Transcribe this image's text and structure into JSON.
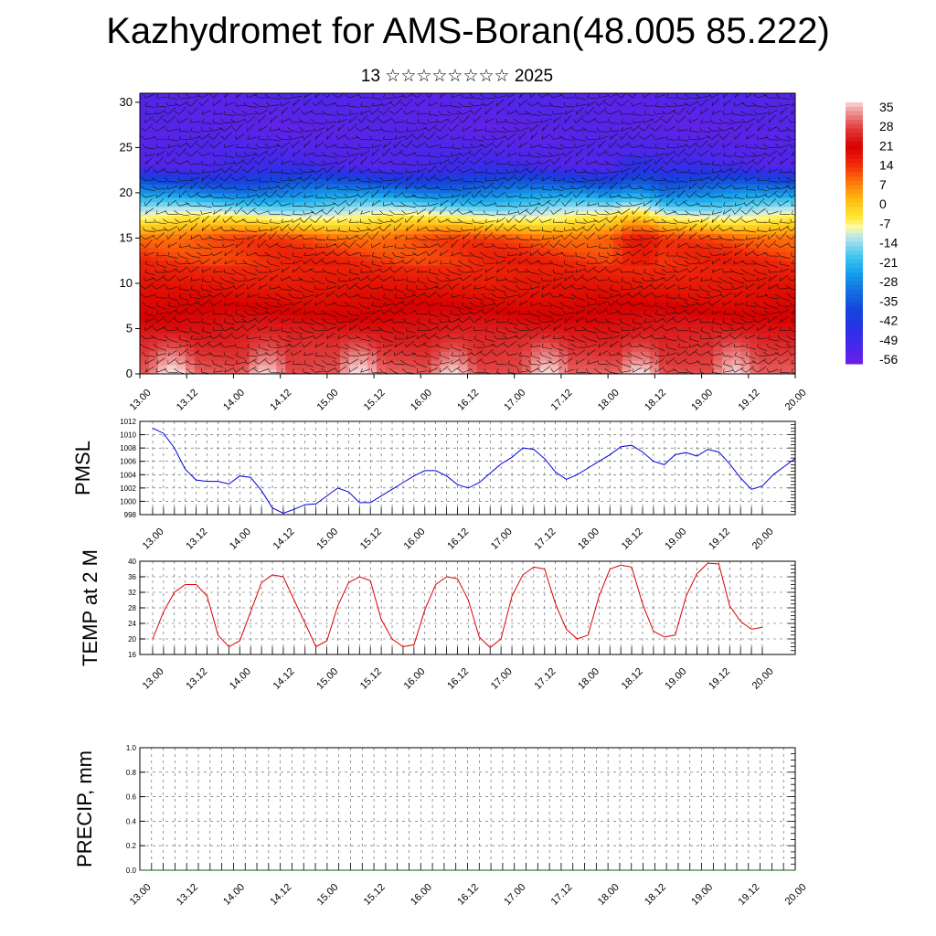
{
  "title": "Kazhydromet for AMS-Boran(48.005 85.222)",
  "subtitle": "13 ☆☆☆☆☆☆☆☆ 2025",
  "chart_data": [
    {
      "type": "heatmap",
      "name": "vertical-section",
      "ylim": [
        0,
        31
      ],
      "yticks": [
        "0",
        "5",
        "10",
        "15",
        "20",
        "25",
        "30"
      ],
      "x_ticks": [
        "13.00",
        "13.12",
        "14.00",
        "14.12",
        "15.00",
        "15.12",
        "16.00",
        "16.12",
        "17.00",
        "17.12",
        "18.00",
        "18.12",
        "19.00",
        "19.12",
        "20.00"
      ],
      "colorbar": {
        "labels": [
          "35",
          "28",
          "21",
          "14",
          "7",
          "0",
          "-7",
          "-14",
          "-21",
          "-28",
          "-35",
          "-42",
          "-49",
          "-56"
        ],
        "min": -63,
        "max": 38
      }
    },
    {
      "type": "line",
      "name": "pmsl",
      "ylabel": "PMSL",
      "ylim": [
        998,
        1012
      ],
      "yticks": [
        "998",
        "1000",
        "1002",
        "1004",
        "1006",
        "1008",
        "1010",
        "1012"
      ],
      "x_ticks": [
        "13.00",
        "13.12",
        "14.00",
        "14.12",
        "15.00",
        "15.12",
        "16.00",
        "16.12",
        "17.00",
        "17.12",
        "18.00",
        "18.12",
        "19.00",
        "19.12",
        "20.00"
      ],
      "series": [
        {
          "color": "#0000dd",
          "values": [
            1011.0,
            1010.2,
            1008.0,
            1004.8,
            1003.2,
            1003.0,
            1003.0,
            1002.6,
            1003.8,
            1003.6,
            1001.6,
            999.0,
            998.2,
            998.8,
            999.5,
            999.6,
            1000.8,
            1002.0,
            1001.4,
            999.8,
            999.8,
            1000.8,
            1001.8,
            1002.8,
            1003.8,
            1004.6,
            1004.6,
            1003.8,
            1002.5,
            1002.0,
            1002.8,
            1004.2,
            1005.6,
            1006.6,
            1008.0,
            1007.8,
            1006.4,
            1004.4,
            1003.3,
            1004.0,
            1005.0,
            1006.0,
            1007.0,
            1008.2,
            1008.4,
            1007.4,
            1006.0,
            1005.5,
            1007.0,
            1007.3,
            1006.8,
            1007.8,
            1007.4,
            1005.6,
            1003.5,
            1001.8,
            1002.3,
            1004.0,
            1005.2,
            1006.4
          ]
        }
      ]
    },
    {
      "type": "line",
      "name": "temp-2m",
      "ylabel": "TEMP at 2 M",
      "ylim": [
        16,
        40
      ],
      "yticks": [
        "16",
        "20",
        "24",
        "28",
        "32",
        "36",
        "40"
      ],
      "x_ticks": [
        "13.00",
        "13.12",
        "14.00",
        "14.12",
        "15.00",
        "15.12",
        "16.00",
        "16.12",
        "17.00",
        "17.12",
        "18.00",
        "18.12",
        "19.00",
        "19.12",
        "20.00"
      ],
      "series": [
        {
          "color": "#dd0000",
          "values": [
            20.0,
            27.0,
            32.0,
            34.0,
            34.0,
            31.0,
            21.0,
            18.0,
            19.5,
            27.0,
            34.5,
            36.5,
            36.0,
            30.0,
            24.0,
            18.0,
            19.5,
            28.5,
            34.5,
            36.0,
            35.0,
            25.0,
            20.0,
            18.0,
            18.5,
            27.5,
            34.0,
            36.0,
            35.5,
            30.0,
            20.5,
            17.8,
            20.0,
            31.0,
            36.5,
            38.5,
            38.0,
            29.0,
            22.5,
            20.0,
            21.0,
            31.0,
            38.0,
            39.0,
            38.5,
            29.0,
            22.0,
            20.5,
            21.0,
            31.0,
            36.8,
            39.5,
            39.3,
            28.5,
            24.5,
            22.5,
            23.0
          ]
        }
      ]
    },
    {
      "type": "line",
      "name": "precip",
      "ylabel": "PRECIP, mm",
      "ylim": [
        0,
        1
      ],
      "yticks": [
        "0.0",
        "0.2",
        "0.4",
        "0.6",
        "0.8",
        "1.0"
      ],
      "x_ticks": [
        "13.00",
        "13.12",
        "14.00",
        "14.12",
        "15.00",
        "15.12",
        "16.00",
        "16.12",
        "17.00",
        "17.12",
        "18.00",
        "18.12",
        "19.00",
        "19.12",
        "20.00"
      ],
      "series": [
        {
          "color": "#006400",
          "values": [
            0,
            0,
            0,
            0,
            0,
            0,
            0,
            0,
            0,
            0,
            0,
            0,
            0,
            0,
            0,
            0,
            0,
            0,
            0,
            0,
            0,
            0,
            0,
            0,
            0,
            0,
            0,
            0,
            0,
            0,
            0,
            0,
            0,
            0,
            0,
            0,
            0,
            0,
            0,
            0,
            0,
            0,
            0,
            0,
            0,
            0,
            0,
            0,
            0,
            0,
            0,
            0,
            0,
            0,
            0,
            0,
            0
          ]
        }
      ]
    }
  ]
}
